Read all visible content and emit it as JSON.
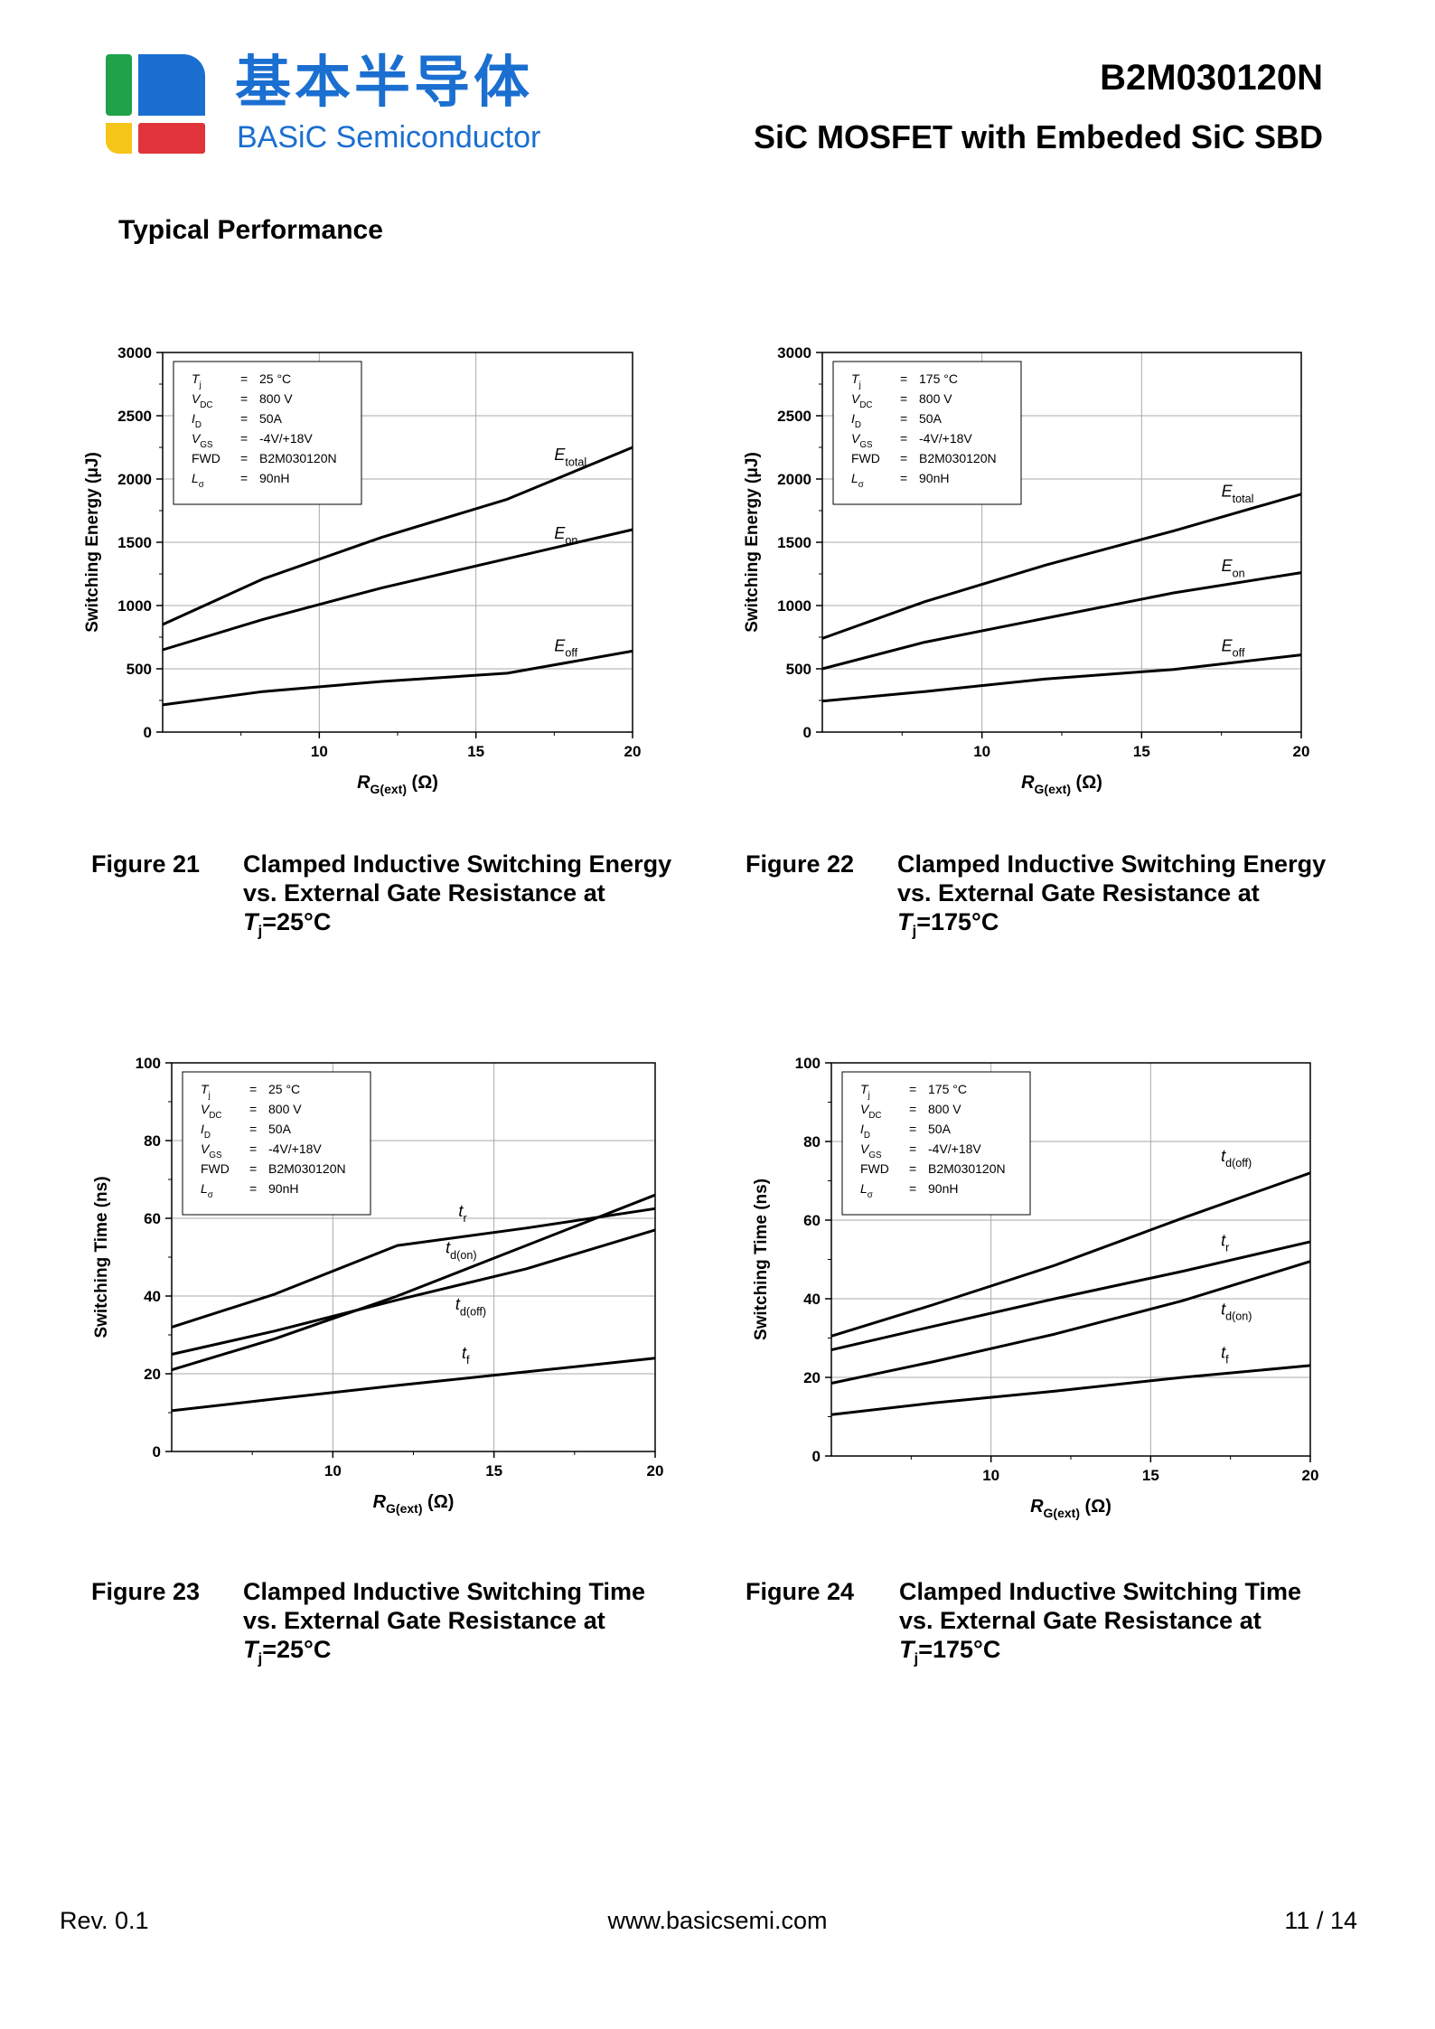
{
  "header": {
    "logo_cn": "基本半导体",
    "logo_en": "BASiC Semiconductor",
    "part_number": "B2M030120N",
    "subtitle": "SiC MOSFET with Embeded SiC SBD",
    "logo_colors": {
      "green": "#1fa24a",
      "blue": "#1a6fd0",
      "yellow": "#f5c518",
      "red": "#e0333a"
    }
  },
  "section_title": "Typical Performance",
  "charts": [
    {
      "id": "fig21",
      "figure_label": "Figure 21",
      "caption_lines": [
        "Clamped Inductive Switching Energy",
        "vs. External Gate Resistance at"
      ],
      "caption_tj": "=25°C",
      "ylabel": "Switching Energy (μJ)",
      "xlabel_unit": "(Ω)",
      "conditions": [
        {
          "sym": "T",
          "sub": "j",
          "val": "25 °C"
        },
        {
          "sym": "V",
          "sub": "DC",
          "val": "800 V"
        },
        {
          "sym": "I",
          "sub": "D",
          "val": "50A"
        },
        {
          "sym": "V",
          "sub": "GS",
          "val": "-4V/+18V"
        },
        {
          "sym": "FWD",
          "sub": "",
          "val": "B2M030120N"
        },
        {
          "sym": "L",
          "sub": "σ",
          "val": "90nH"
        }
      ]
    },
    {
      "id": "fig22",
      "figure_label": "Figure 22",
      "caption_lines": [
        "Clamped Inductive Switching Energy",
        "vs. External Gate Resistance at"
      ],
      "caption_tj": "=175°C",
      "ylabel": "Switching Energy (μJ)",
      "xlabel_unit": "(Ω)",
      "conditions": [
        {
          "sym": "T",
          "sub": "j",
          "val": "175 °C"
        },
        {
          "sym": "V",
          "sub": "DC",
          "val": "800 V"
        },
        {
          "sym": "I",
          "sub": "D",
          "val": "50A"
        },
        {
          "sym": "V",
          "sub": "GS",
          "val": "-4V/+18V"
        },
        {
          "sym": "FWD",
          "sub": "",
          "val": "B2M030120N"
        },
        {
          "sym": "L",
          "sub": "σ",
          "val": "90nH"
        }
      ]
    },
    {
      "id": "fig23",
      "figure_label": "Figure 23",
      "caption_lines": [
        "Clamped Inductive Switching Time",
        "vs. External Gate Resistance at"
      ],
      "caption_tj": "=25°C",
      "ylabel": "Switching Time (ns)",
      "xlabel_unit": "(Ω)",
      "conditions": [
        {
          "sym": "T",
          "sub": "j",
          "val": "25 °C"
        },
        {
          "sym": "V",
          "sub": "DC",
          "val": "800 V"
        },
        {
          "sym": "I",
          "sub": "D",
          "val": "50A"
        },
        {
          "sym": "V",
          "sub": "GS",
          "val": "-4V/+18V"
        },
        {
          "sym": "FWD",
          "sub": "",
          "val": "B2M030120N"
        },
        {
          "sym": "L",
          "sub": "σ",
          "val": "90nH"
        }
      ]
    },
    {
      "id": "fig24",
      "figure_label": "Figure 24",
      "caption_lines": [
        "Clamped Inductive Switching Time",
        "vs. External Gate Resistance at"
      ],
      "caption_tj": "=175°C",
      "ylabel": "Switching Time (ns)",
      "xlabel_unit": "(Ω)",
      "conditions": [
        {
          "sym": "T",
          "sub": "j",
          "val": "175 °C"
        },
        {
          "sym": "V",
          "sub": "DC",
          "val": "800 V"
        },
        {
          "sym": "I",
          "sub": "D",
          "val": "50A"
        },
        {
          "sym": "V",
          "sub": "GS",
          "val": "-4V/+18V"
        },
        {
          "sym": "FWD",
          "sub": "",
          "val": "B2M030120N"
        },
        {
          "sym": "L",
          "sub": "σ",
          "val": "90nH"
        }
      ]
    }
  ],
  "chart_data": [
    {
      "type": "line",
      "xlim": [
        5,
        20
      ],
      "ylim": [
        0,
        3000
      ],
      "xticks": [
        10,
        15,
        20
      ],
      "yticks": [
        0,
        500,
        1000,
        1500,
        2000,
        2500,
        3000
      ],
      "xlabel": "RG(ext) (Ω)",
      "ylabel": "Switching Energy (μJ)",
      "grid": true,
      "series": [
        {
          "name": "Etotal",
          "label_main": "E",
          "label_sub": "total",
          "x": [
            5,
            8.2,
            12,
            16,
            20
          ],
          "y": [
            850,
            1210,
            1540,
            1840,
            2250
          ],
          "label_at": [
            17.5,
            2150
          ]
        },
        {
          "name": "Eon",
          "label_main": "E",
          "label_sub": "on",
          "x": [
            5,
            8.2,
            12,
            16,
            20
          ],
          "y": [
            650,
            890,
            1140,
            1370,
            1600
          ],
          "label_at": [
            17.5,
            1530
          ]
        },
        {
          "name": "Eoff",
          "label_main": "E",
          "label_sub": "off",
          "x": [
            5,
            8.2,
            12,
            16,
            20
          ],
          "y": [
            215,
            320,
            400,
            465,
            640
          ],
          "label_at": [
            17.5,
            640
          ]
        }
      ]
    },
    {
      "type": "line",
      "xlim": [
        5,
        20
      ],
      "ylim": [
        0,
        3000
      ],
      "xticks": [
        10,
        15,
        20
      ],
      "yticks": [
        0,
        500,
        1000,
        1500,
        2000,
        2500,
        3000
      ],
      "xlabel": "RG(ext) (Ω)",
      "ylabel": "Switching Energy (μJ)",
      "grid": true,
      "series": [
        {
          "name": "Etotal",
          "label_main": "E",
          "label_sub": "total",
          "x": [
            5,
            8.2,
            12,
            16,
            20
          ],
          "y": [
            740,
            1030,
            1320,
            1590,
            1880
          ],
          "label_at": [
            17.5,
            1860
          ]
        },
        {
          "name": "Eon",
          "label_main": "E",
          "label_sub": "on",
          "x": [
            5,
            8.2,
            12,
            16,
            20
          ],
          "y": [
            500,
            710,
            900,
            1100,
            1260
          ],
          "label_at": [
            17.5,
            1270
          ]
        },
        {
          "name": "Eoff",
          "label_main": "E",
          "label_sub": "off",
          "x": [
            5,
            8.2,
            12,
            16,
            20
          ],
          "y": [
            245,
            320,
            420,
            495,
            610
          ],
          "label_at": [
            17.5,
            640
          ]
        }
      ]
    },
    {
      "type": "line",
      "xlim": [
        5,
        20
      ],
      "ylim": [
        0,
        100
      ],
      "xticks": [
        10,
        15,
        20
      ],
      "yticks": [
        0,
        20,
        40,
        60,
        80,
        100
      ],
      "xlabel": "RG(ext) (Ω)",
      "ylabel": "Switching Time (ns)",
      "grid": true,
      "series": [
        {
          "name": "tr",
          "label_main": "t",
          "label_sub": "r",
          "x": [
            5,
            8.2,
            12,
            16,
            20
          ],
          "y": [
            32,
            40.5,
            53,
            57.5,
            62.5
          ],
          "label_at": [
            13.9,
            60.5
          ]
        },
        {
          "name": "td(on)",
          "label_main": "t",
          "label_sub": "d(on)",
          "x": [
            5,
            8.2,
            12,
            16,
            20
          ],
          "y": [
            21,
            29,
            40,
            53,
            66
          ],
          "label_at": [
            13.5,
            51
          ]
        },
        {
          "name": "td(off)",
          "label_main": "t",
          "label_sub": "d(off)",
          "x": [
            5,
            8.2,
            12,
            16,
            20
          ],
          "y": [
            25,
            31,
            39,
            47,
            57
          ],
          "label_at": [
            13.8,
            36.5
          ]
        },
        {
          "name": "tf",
          "label_main": "t",
          "label_sub": "f",
          "x": [
            5,
            8.2,
            12,
            16,
            20
          ],
          "y": [
            10.5,
            13.5,
            17,
            20.5,
            24
          ],
          "label_at": [
            14.0,
            24
          ]
        }
      ]
    },
    {
      "type": "line",
      "xlim": [
        5,
        20
      ],
      "ylim": [
        0,
        100
      ],
      "xticks": [
        10,
        15,
        20
      ],
      "yticks": [
        0,
        20,
        40,
        60,
        80,
        100
      ],
      "xlabel": "RG(ext) (Ω)",
      "ylabel": "Switching Time (ns)",
      "grid": true,
      "series": [
        {
          "name": "td(off)",
          "label_main": "t",
          "label_sub": "d(off)",
          "x": [
            5,
            8.2,
            12,
            16,
            20
          ],
          "y": [
            30.5,
            38.5,
            48.5,
            60.5,
            72
          ],
          "label_at": [
            17.2,
            75
          ]
        },
        {
          "name": "tr",
          "label_main": "t",
          "label_sub": "r",
          "x": [
            5,
            8.2,
            12,
            16,
            20
          ],
          "y": [
            27,
            33,
            40,
            47,
            54.5
          ],
          "label_at": [
            17.2,
            53.5
          ]
        },
        {
          "name": "td(on)",
          "label_main": "t",
          "label_sub": "d(on)",
          "x": [
            5,
            8.2,
            12,
            16,
            20
          ],
          "y": [
            18.5,
            24,
            31,
            39.5,
            49.5
          ],
          "label_at": [
            17.2,
            36
          ]
        },
        {
          "name": "tf",
          "label_main": "t",
          "label_sub": "f",
          "x": [
            5,
            8.2,
            12,
            16,
            20
          ],
          "y": [
            10.5,
            13.5,
            16.5,
            20,
            23
          ],
          "label_at": [
            17.2,
            25
          ]
        }
      ]
    }
  ],
  "footer": {
    "rev": "Rev. 0.1",
    "url": "www.basicsemi.com",
    "page": "11  /  14"
  }
}
